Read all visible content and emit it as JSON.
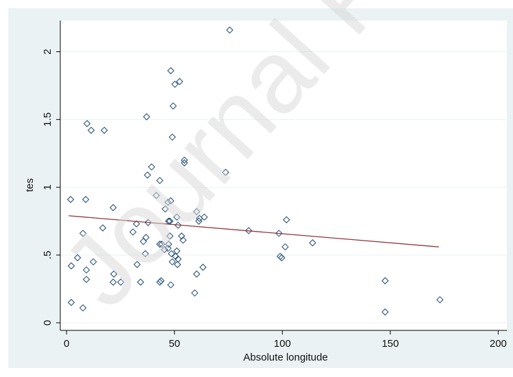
{
  "watermark": "Journal P",
  "chart_data": {
    "type": "scatter",
    "x_label": "Absolute longitude",
    "y_label": "tes",
    "xlim": [
      -2.9,
      204
    ],
    "ylim": [
      -0.056,
      2.23
    ],
    "xticks": [
      0,
      50,
      100,
      150,
      200
    ],
    "yticks": [
      0,
      {
        "value": 0.5,
        "label": ".5"
      },
      1,
      1.5,
      2
    ],
    "grid": true,
    "series": [
      {
        "type": "scatter",
        "color": "#1a476f",
        "x": [
          1.9,
          2.2,
          2.2,
          5.1,
          7.6,
          7.6,
          8.9,
          9.5,
          9.2,
          9.2,
          11.4,
          12.4,
          16.8,
          17.5,
          21.6,
          21.9,
          21.6,
          25.1,
          30.8,
          32.4,
          32.7,
          34.3,
          35.6,
          36.8,
          36.5,
          37.1,
          37.5,
          37.8,
          39.4,
          41.6,
          43.2,
          43.2,
          44.1,
          43.8,
          43.2,
          45.7,
          45.4,
          47.0,
          48.3,
          47.3,
          47.9,
          47.9,
          47.3,
          47.0,
          48.6,
          49.0,
          48.3,
          48.3,
          49.0,
          49.4,
          50.2,
          52.4,
          50.5,
          51.1,
          51.7,
          51.1,
          51.7,
          51.4,
          53.3,
          54.0,
          54.6,
          54.6,
          59.4,
          60.3,
          60.3,
          61.3,
          61.6,
          63.8,
          63.2,
          73.7,
          75.6,
          84.4,
          98.4,
          99.0,
          99.7,
          101.3,
          101.9,
          114.0,
          147.6,
          147.6,
          173.0
        ],
        "values": [
          0.91,
          0.42,
          0.15,
          0.48,
          0.66,
          0.11,
          0.91,
          1.47,
          0.39,
          0.32,
          1.42,
          0.45,
          0.7,
          1.42,
          0.85,
          0.36,
          0.3,
          0.3,
          0.67,
          0.73,
          0.43,
          0.3,
          0.6,
          0.63,
          0.51,
          1.52,
          1.09,
          0.74,
          1.15,
          0.94,
          1.05,
          0.58,
          0.58,
          0.31,
          0.3,
          0.84,
          0.54,
          0.89,
          0.9,
          0.75,
          0.75,
          0.64,
          0.58,
          0.55,
          0.51,
          0.45,
          0.28,
          1.86,
          1.37,
          1.6,
          1.76,
          1.78,
          0.49,
          0.78,
          0.72,
          0.53,
          0.47,
          0.43,
          0.64,
          0.61,
          1.2,
          1.18,
          0.22,
          0.82,
          0.36,
          0.75,
          0.77,
          0.78,
          0.41,
          1.11,
          2.16,
          0.68,
          0.66,
          0.49,
          0.48,
          0.56,
          0.76,
          0.59,
          0.31,
          0.08,
          0.17
        ]
      },
      {
        "type": "line",
        "color": "#90353b",
        "x": [
          1.0,
          172.5
        ],
        "values": [
          0.79,
          0.56
        ]
      }
    ]
  }
}
